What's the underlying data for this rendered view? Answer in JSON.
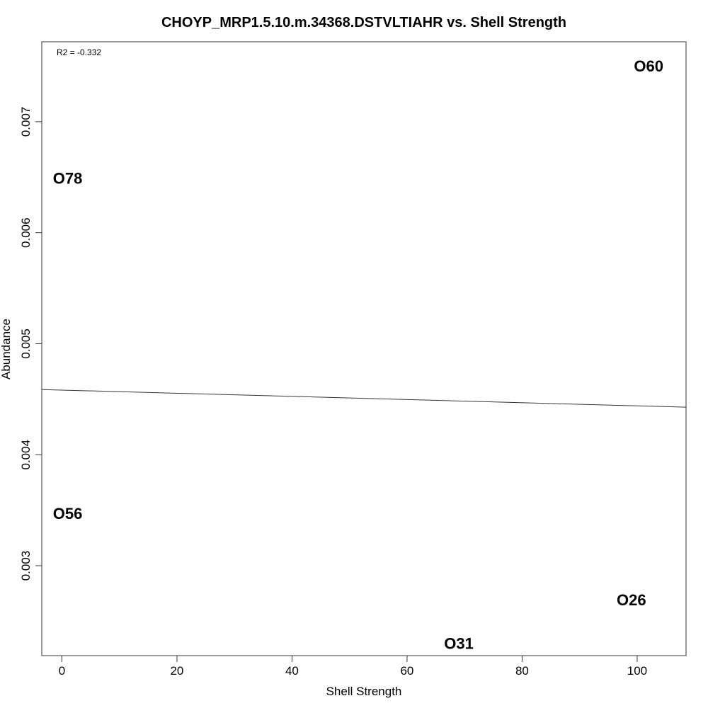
{
  "chart_data": {
    "type": "scatter",
    "title": "CHOYP_MRP1.5.10.m.34368.DSTVLTIAHR vs. Shell Strength",
    "xlabel": "Shell Strength",
    "ylabel": "Abundance",
    "xlim": [
      -3.5,
      108.5
    ],
    "ylim": [
      0.00219,
      0.00772
    ],
    "xticks": [
      0,
      20,
      40,
      60,
      80,
      100
    ],
    "xtick_labels": [
      "0",
      "20",
      "40",
      "60",
      "80",
      "100"
    ],
    "yticks": [
      0.003,
      0.004,
      0.005,
      0.006,
      0.007
    ],
    "ytick_labels": [
      "0.003",
      "0.004",
      "0.005",
      "0.006",
      "0.007"
    ],
    "annotation": "R2 = -0.332",
    "points": [
      {
        "label": "O60",
        "x": 102,
        "y": 0.0075
      },
      {
        "label": "O78",
        "x": 1,
        "y": 0.00649
      },
      {
        "label": "O56",
        "x": 1,
        "y": 0.00347
      },
      {
        "label": "O26",
        "x": 99,
        "y": 0.00269
      },
      {
        "label": "O31",
        "x": 69,
        "y": 0.0023
      }
    ],
    "fit_line": {
      "x": [
        -3.5,
        108.5
      ],
      "y": [
        0.004587,
        0.004428
      ]
    },
    "grid": false,
    "legend": "none"
  }
}
